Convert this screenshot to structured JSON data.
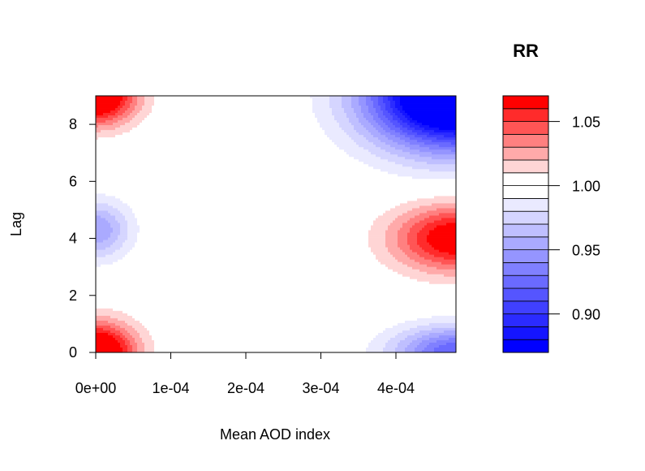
{
  "chart_data": {
    "type": "heatmap",
    "subtype": "filled-contour",
    "xlabel": "Mean AOD index",
    "ylabel": "Lag",
    "xlim": [
      0,
      0.00048
    ],
    "ylim": [
      0,
      9
    ],
    "x_ticks": [
      {
        "value": 0,
        "label": "0e+00"
      },
      {
        "value": 0.0001,
        "label": "1e-04"
      },
      {
        "value": 0.0002,
        "label": "2e-04"
      },
      {
        "value": 0.0003,
        "label": "3e-04"
      },
      {
        "value": 0.0004,
        "label": "4e-04"
      }
    ],
    "y_ticks": [
      {
        "value": 0,
        "label": "0"
      },
      {
        "value": 2,
        "label": "2"
      },
      {
        "value": 4,
        "label": "4"
      },
      {
        "value": 6,
        "label": "6"
      },
      {
        "value": 8,
        "label": "8"
      }
    ],
    "legend": {
      "title": "RR",
      "placement": "right",
      "min": 0.87,
      "max": 1.07,
      "step": 0.01,
      "ticks": [
        {
          "value": 0.9,
          "label": "0.90"
        },
        {
          "value": 0.95,
          "label": "0.95"
        },
        {
          "value": 1.0,
          "label": "1.00"
        },
        {
          "value": 1.05,
          "label": "1.05"
        }
      ],
      "low_color": "#0000ff",
      "mid_color": "#ffffff",
      "high_color": "#ff0000"
    },
    "features": [
      {
        "x": 0,
        "y": 9,
        "sx": 5.25e-05,
        "sy": 1.0,
        "amp": 0.095
      },
      {
        "x": 0,
        "y": 0,
        "sx": 5.25e-05,
        "sy": 1.05,
        "amp": 0.095
      },
      {
        "x": 0,
        "y": 4.3,
        "sx": 4.5e-05,
        "sy": 1.0,
        "amp": -0.05
      },
      {
        "x": 0.00048,
        "y": 4.0,
        "sx": 8.25e-05,
        "sy": 1.15,
        "amp": 0.075
      },
      {
        "x": 0.00048,
        "y": 9,
        "sx": 0.0001125,
        "sy": 1.8,
        "amp": -0.19
      },
      {
        "x": 0.00048,
        "y": 0,
        "sx": 8.25e-05,
        "sy": 0.9,
        "amp": -0.08
      }
    ]
  }
}
